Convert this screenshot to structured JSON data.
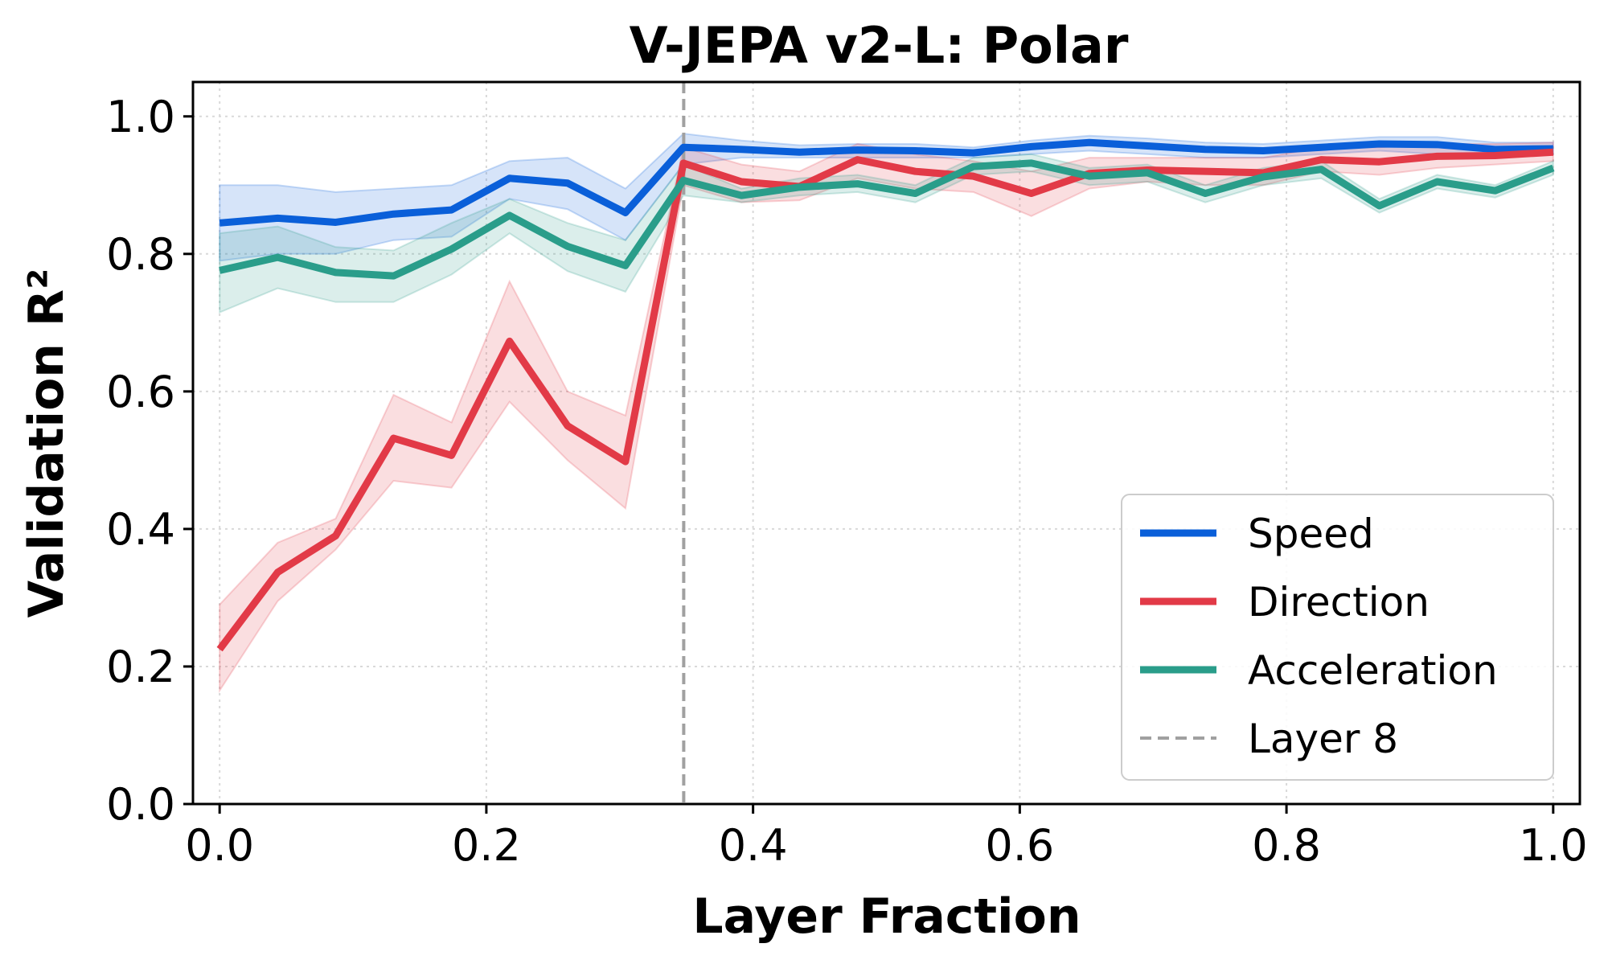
{
  "chart_data": {
    "type": "line",
    "title": "V-JEPA v2-L: Polar",
    "xlabel": "Layer Fraction",
    "ylabel": "Validation R²",
    "xlim": [
      -0.02,
      1.02
    ],
    "ylim": [
      0.0,
      1.05
    ],
    "xticks": [
      "0.0",
      "0.2",
      "0.4",
      "0.6",
      "0.8",
      "1.0"
    ],
    "yticks": [
      "0.0",
      "0.2",
      "0.4",
      "0.6",
      "0.8",
      "1.0"
    ],
    "grid": true,
    "legend_position": "lower-right",
    "x": [
      0.0,
      0.0435,
      0.087,
      0.1304,
      0.1739,
      0.2174,
      0.2609,
      0.3043,
      0.3478,
      0.3913,
      0.4348,
      0.4783,
      0.5217,
      0.5652,
      0.6087,
      0.6522,
      0.6957,
      0.7391,
      0.7826,
      0.8261,
      0.8696,
      0.913,
      0.9565,
      1.0
    ],
    "series": [
      {
        "name": "Speed",
        "color": "#0a5fd9",
        "values": [
          0.845,
          0.852,
          0.846,
          0.858,
          0.864,
          0.91,
          0.903,
          0.86,
          0.955,
          0.952,
          0.948,
          0.951,
          0.95,
          0.947,
          0.956,
          0.962,
          0.957,
          0.952,
          0.95,
          0.955,
          0.96,
          0.959,
          0.952,
          0.953
        ],
        "lower": [
          0.79,
          0.8,
          0.8,
          0.82,
          0.825,
          0.88,
          0.865,
          0.82,
          0.93,
          0.94,
          0.94,
          0.94,
          0.94,
          0.94,
          0.945,
          0.95,
          0.945,
          0.94,
          0.94,
          0.945,
          0.95,
          0.945,
          0.94,
          0.945
        ],
        "upper": [
          0.9,
          0.9,
          0.89,
          0.895,
          0.9,
          0.935,
          0.94,
          0.895,
          0.975,
          0.965,
          0.958,
          0.96,
          0.96,
          0.955,
          0.965,
          0.972,
          0.968,
          0.962,
          0.96,
          0.965,
          0.97,
          0.97,
          0.962,
          0.962
        ]
      },
      {
        "name": "Direction",
        "color": "#e23a47",
        "values": [
          0.225,
          0.337,
          0.39,
          0.532,
          0.507,
          0.673,
          0.55,
          0.498,
          0.932,
          0.905,
          0.898,
          0.937,
          0.92,
          0.913,
          0.888,
          0.917,
          0.922,
          0.92,
          0.918,
          0.937,
          0.934,
          0.942,
          0.943,
          0.948
        ],
        "lower": [
          0.165,
          0.295,
          0.37,
          0.47,
          0.46,
          0.585,
          0.5,
          0.43,
          0.9,
          0.875,
          0.878,
          0.91,
          0.895,
          0.89,
          0.855,
          0.895,
          0.905,
          0.9,
          0.9,
          0.92,
          0.915,
          0.925,
          0.93,
          0.935
        ],
        "upper": [
          0.29,
          0.38,
          0.415,
          0.595,
          0.555,
          0.76,
          0.6,
          0.565,
          0.955,
          0.93,
          0.92,
          0.96,
          0.945,
          0.935,
          0.92,
          0.94,
          0.94,
          0.94,
          0.94,
          0.955,
          0.955,
          0.96,
          0.96,
          0.962
        ]
      },
      {
        "name": "Acceleration",
        "color": "#2a9d8a",
        "values": [
          0.776,
          0.795,
          0.773,
          0.768,
          0.807,
          0.856,
          0.811,
          0.783,
          0.907,
          0.885,
          0.897,
          0.902,
          0.888,
          0.927,
          0.932,
          0.913,
          0.918,
          0.888,
          0.912,
          0.923,
          0.87,
          0.905,
          0.892,
          0.925
        ],
        "lower": [
          0.715,
          0.75,
          0.73,
          0.73,
          0.77,
          0.83,
          0.775,
          0.745,
          0.885,
          0.875,
          0.885,
          0.89,
          0.875,
          0.915,
          0.92,
          0.9,
          0.905,
          0.875,
          0.9,
          0.91,
          0.86,
          0.895,
          0.882,
          0.915
        ],
        "upper": [
          0.83,
          0.84,
          0.81,
          0.805,
          0.845,
          0.88,
          0.845,
          0.82,
          0.93,
          0.895,
          0.91,
          0.915,
          0.9,
          0.94,
          0.945,
          0.925,
          0.93,
          0.9,
          0.925,
          0.935,
          0.88,
          0.915,
          0.9,
          0.935
        ]
      }
    ],
    "annotations": [
      {
        "name": "Layer 8",
        "type": "vline",
        "x": 0.348,
        "color": "#a0a0a0"
      }
    ]
  }
}
